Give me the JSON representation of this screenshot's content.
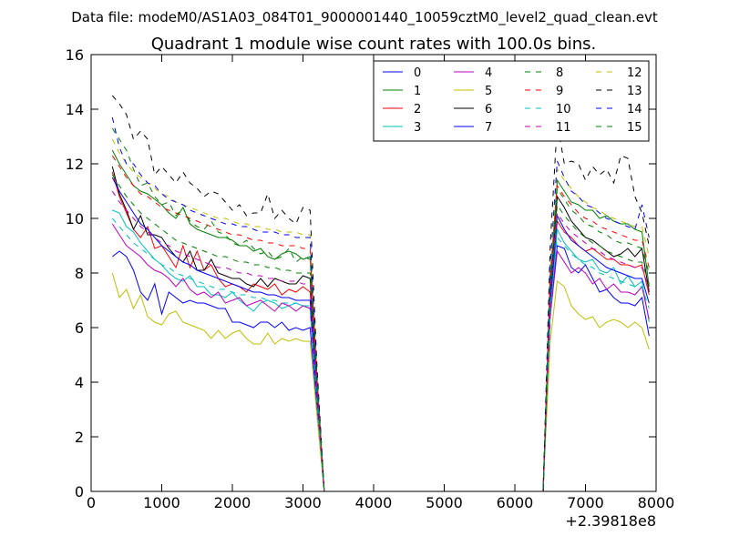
{
  "chart_data": {
    "type": "line",
    "suptitle": "Data file: modeM0/AS1A03_084T01_9000001440_10059cztM0_level2_quad_clean.evt",
    "title": "Quadrant 1 module wise count rates with 100.0s bins.",
    "xlabel": "",
    "ylabel": "",
    "x_offset_label": "+2.39818e8",
    "xlim": [
      0,
      8000
    ],
    "ylim": [
      0,
      16
    ],
    "xticks": [
      0,
      1000,
      2000,
      3000,
      4000,
      5000,
      6000,
      7000,
      8000
    ],
    "yticks": [
      0,
      2,
      4,
      6,
      8,
      10,
      12,
      14,
      16
    ],
    "grid": false,
    "legend_position": "top-right",
    "legend_columns": 4,
    "x": [
      300,
      400,
      500,
      600,
      700,
      800,
      900,
      1000,
      1100,
      1200,
      1300,
      1400,
      1500,
      1600,
      1700,
      1800,
      1900,
      2000,
      2100,
      2200,
      2300,
      2400,
      2500,
      2600,
      2700,
      2800,
      2900,
      3000,
      3100,
      3200,
      3300,
      6400,
      6500,
      6600,
      6700,
      6800,
      6900,
      7000,
      7100,
      7200,
      7300,
      7400,
      7500,
      7600,
      7700,
      7800,
      7900
    ],
    "series": [
      {
        "name": "0",
        "color": "#0000ff",
        "dash": "solid",
        "values": [
          8.6,
          8.8,
          8.6,
          8.1,
          7.3,
          7.0,
          7.6,
          6.5,
          7.3,
          7.1,
          6.9,
          7.0,
          6.9,
          6.9,
          6.8,
          6.7,
          6.7,
          6.2,
          6.2,
          6.1,
          6.0,
          6.2,
          6.2,
          6.0,
          6.2,
          5.9,
          6.0,
          5.9,
          6.0,
          3.0,
          0,
          0,
          6.5,
          9.0,
          8.9,
          8.2,
          8.0,
          8.3,
          7.8,
          7.3,
          7.4,
          7.1,
          6.9,
          6.9,
          6.8,
          7.1,
          5.7
        ]
      },
      {
        "name": "1",
        "color": "#008000",
        "dash": "solid",
        "values": [
          12.5,
          12.0,
          11.6,
          11.2,
          11.0,
          10.9,
          10.7,
          10.5,
          10.2,
          10.0,
          10.4,
          9.8,
          9.6,
          9.5,
          9.4,
          9.3,
          9.3,
          9.2,
          9.0,
          9.0,
          8.8,
          8.9,
          8.6,
          8.5,
          8.7,
          8.8,
          8.7,
          8.5,
          8.6,
          4.0,
          0,
          0,
          7.5,
          11.4,
          11.0,
          10.6,
          10.5,
          10.3,
          10.3,
          10.0,
          10.1,
          9.9,
          9.8,
          9.8,
          9.6,
          9.5,
          7.5
        ]
      },
      {
        "name": "2",
        "color": "#ff0000",
        "dash": "solid",
        "values": [
          11.7,
          10.8,
          10.2,
          9.6,
          9.3,
          9.7,
          8.9,
          9.0,
          8.6,
          8.2,
          9.0,
          8.2,
          8.8,
          8.1,
          8.3,
          7.8,
          7.5,
          7.6,
          7.5,
          7.3,
          7.6,
          7.5,
          7.4,
          7.6,
          7.2,
          7.4,
          7.3,
          7.5,
          7.3,
          3.5,
          0,
          0,
          6.8,
          9.9,
          9.5,
          9.3,
          9.0,
          8.8,
          8.9,
          8.7,
          8.5,
          8.5,
          8.3,
          8.3,
          8.2,
          8.3,
          7.2
        ]
      },
      {
        "name": "3",
        "color": "#00bfbf",
        "dash": "solid",
        "values": [
          10.3,
          10.2,
          9.7,
          9.5,
          9.1,
          8.8,
          8.5,
          8.3,
          8.0,
          7.8,
          7.7,
          7.9,
          7.5,
          7.5,
          7.2,
          7.2,
          7.1,
          7.3,
          7.0,
          6.8,
          6.6,
          6.9,
          7.0,
          6.9,
          6.7,
          6.8,
          6.9,
          6.8,
          6.7,
          3.2,
          0,
          0,
          6.6,
          9.6,
          9.1,
          8.8,
          8.5,
          8.4,
          8.5,
          8.1,
          8.0,
          8.2,
          7.6,
          7.9,
          7.5,
          7.7,
          6.2
        ]
      },
      {
        "name": "4",
        "color": "#bf00bf",
        "dash": "solid",
        "values": [
          9.8,
          9.4,
          9.0,
          8.8,
          8.6,
          8.3,
          8.1,
          8.0,
          7.8,
          7.5,
          7.8,
          7.4,
          7.2,
          7.3,
          7.1,
          7.3,
          6.9,
          7.0,
          7.1,
          6.8,
          6.9,
          7.0,
          6.8,
          6.6,
          6.9,
          6.8,
          6.6,
          6.8,
          6.7,
          3.3,
          0,
          0,
          6.4,
          8.8,
          8.4,
          8.0,
          8.2,
          8.0,
          7.6,
          7.8,
          7.4,
          7.6,
          7.3,
          7.3,
          7.2,
          7.5,
          6.3
        ]
      },
      {
        "name": "5",
        "color": "#bfbf00",
        "dash": "solid",
        "values": [
          8.0,
          7.1,
          7.4,
          6.7,
          7.2,
          6.4,
          6.2,
          6.1,
          6.5,
          6.6,
          6.2,
          6.1,
          6.0,
          5.9,
          5.6,
          5.9,
          5.6,
          5.8,
          5.9,
          5.6,
          5.4,
          5.4,
          5.8,
          5.4,
          5.6,
          5.5,
          5.6,
          5.5,
          5.5,
          2.7,
          0,
          0,
          5.5,
          7.7,
          7.5,
          6.8,
          6.5,
          6.3,
          6.4,
          6.0,
          6.2,
          6.3,
          6.2,
          6.0,
          6.2,
          6.0,
          5.2
        ]
      },
      {
        "name": "6",
        "color": "#000000",
        "dash": "solid",
        "values": [
          11.9,
          10.9,
          10.3,
          9.6,
          10.1,
          9.4,
          9.4,
          9.3,
          8.9,
          8.6,
          8.4,
          8.8,
          8.1,
          8.1,
          8.5,
          8.0,
          7.9,
          7.8,
          7.8,
          7.6,
          7.5,
          7.8,
          7.5,
          7.8,
          7.7,
          7.6,
          7.6,
          7.9,
          7.8,
          3.5,
          0,
          0,
          7.2,
          10.8,
          10.4,
          9.9,
          9.6,
          9.3,
          9.2,
          9.0,
          8.8,
          8.6,
          8.7,
          8.9,
          8.6,
          8.9,
          7.3
        ]
      },
      {
        "name": "7",
        "color": "#0000ff",
        "dash": "solid",
        "values": [
          11.5,
          11.0,
          10.6,
          10.2,
          9.8,
          9.6,
          9.3,
          9.0,
          8.8,
          8.6,
          8.4,
          8.3,
          8.1,
          8.0,
          7.9,
          7.8,
          7.7,
          7.6,
          7.5,
          7.4,
          7.3,
          7.3,
          7.2,
          7.2,
          7.1,
          7.1,
          7.0,
          7.0,
          7.0,
          3.4,
          0,
          0,
          6.9,
          10.1,
          9.6,
          9.2,
          9.0,
          8.8,
          8.6,
          8.4,
          8.2,
          8.1,
          8.0,
          7.9,
          7.8,
          7.8,
          6.9
        ]
      },
      {
        "name": "8",
        "color": "#008000",
        "dash": "dashed",
        "values": [
          11.6,
          11.2,
          10.8,
          10.5,
          10.2,
          10.0,
          9.8,
          9.6,
          9.4,
          9.2,
          9.1,
          9.0,
          8.9,
          8.8,
          8.7,
          8.6,
          8.6,
          8.5,
          8.4,
          8.4,
          8.3,
          8.3,
          8.2,
          8.2,
          8.1,
          8.1,
          8.0,
          8.0,
          8.0,
          3.8,
          0,
          0,
          7.4,
          10.5,
          10.1,
          9.8,
          9.5,
          9.3,
          9.1,
          9.0,
          8.8,
          8.7,
          8.6,
          8.5,
          8.4,
          8.4,
          7.6
        ]
      },
      {
        "name": "9",
        "color": "#ff0000",
        "dash": "dashed",
        "values": [
          12.3,
          11.9,
          11.5,
          11.2,
          10.9,
          10.8,
          10.6,
          10.4,
          10.3,
          10.2,
          10.1,
          10.0,
          9.9,
          9.8,
          9.7,
          9.6,
          9.5,
          9.4,
          9.4,
          9.3,
          9.2,
          9.2,
          9.1,
          9.1,
          9.0,
          9.0,
          9.0,
          8.9,
          8.9,
          4.1,
          0,
          0,
          7.9,
          11.2,
          10.8,
          10.5,
          10.2,
          10.0,
          9.9,
          9.7,
          9.6,
          9.5,
          9.4,
          9.3,
          9.2,
          9.2,
          8.2
        ]
      },
      {
        "name": "10",
        "color": "#00bfbf",
        "dash": "dashed",
        "values": [
          10.0,
          9.7,
          9.4,
          9.1,
          8.9,
          8.7,
          8.5,
          8.3,
          8.2,
          8.0,
          7.9,
          7.8,
          7.7,
          7.6,
          7.5,
          7.4,
          7.4,
          7.3,
          7.2,
          7.2,
          7.1,
          7.1,
          7.0,
          7.0,
          6.9,
          6.9,
          6.9,
          6.8,
          6.8,
          3.3,
          0,
          0,
          6.7,
          9.3,
          9.0,
          8.7,
          8.5,
          8.3,
          8.2,
          8.0,
          7.9,
          7.8,
          7.7,
          7.6,
          7.5,
          7.5,
          6.7
        ]
      },
      {
        "name": "11",
        "color": "#bf00bf",
        "dash": "dashed",
        "values": [
          11.0,
          10.6,
          10.3,
          10.0,
          9.7,
          9.5,
          9.3,
          9.1,
          9.0,
          8.8,
          8.7,
          8.6,
          8.5,
          8.4,
          8.3,
          8.2,
          8.2,
          8.1,
          8.0,
          8.0,
          7.9,
          7.9,
          7.8,
          7.8,
          7.7,
          7.7,
          7.7,
          7.6,
          7.6,
          3.6,
          0,
          0,
          7.2,
          10.2,
          9.8,
          9.5,
          9.3,
          9.1,
          8.9,
          8.8,
          8.6,
          8.5,
          8.4,
          8.3,
          8.2,
          8.2,
          7.4
        ]
      },
      {
        "name": "12",
        "color": "#bfbf00",
        "dash": "dashed",
        "values": [
          12.9,
          12.4,
          12.0,
          11.7,
          11.5,
          11.3,
          11.1,
          10.9,
          10.8,
          10.6,
          10.5,
          10.4,
          10.3,
          10.2,
          10.1,
          10.0,
          10.0,
          9.9,
          9.8,
          9.8,
          9.7,
          9.7,
          9.6,
          9.6,
          9.5,
          9.5,
          9.5,
          9.4,
          9.4,
          4.3,
          0,
          0,
          8.2,
          11.8,
          11.4,
          11.1,
          10.8,
          10.6,
          10.4,
          10.3,
          10.1,
          10.0,
          9.9,
          9.8,
          9.7,
          9.7,
          8.6
        ]
      },
      {
        "name": "13",
        "color": "#000000",
        "dash": "dashed",
        "values": [
          14.5,
          14.2,
          13.8,
          12.9,
          13.2,
          12.9,
          11.6,
          11.9,
          11.6,
          11.3,
          11.7,
          11.3,
          11.1,
          10.8,
          11.0,
          10.9,
          10.6,
          10.3,
          10.5,
          10.1,
          10.2,
          10.2,
          10.9,
          10.0,
          10.3,
          10.0,
          9.8,
          10.4,
          10.3,
          4.5,
          0,
          0,
          9.0,
          13.5,
          12.0,
          12.1,
          12.0,
          11.4,
          11.9,
          11.6,
          11.8,
          11.3,
          12.3,
          12.2,
          10.8,
          10.2,
          9.0
        ]
      },
      {
        "name": "14",
        "color": "#0000ff",
        "dash": "dashed",
        "values": [
          13.7,
          12.6,
          12.0,
          12.0,
          11.6,
          11.3,
          11.2,
          10.9,
          10.7,
          10.6,
          10.5,
          10.3,
          10.2,
          10.1,
          10.0,
          9.9,
          9.8,
          9.8,
          9.7,
          9.7,
          9.6,
          9.5,
          9.5,
          9.5,
          9.4,
          9.4,
          9.3,
          9.3,
          9.3,
          4.2,
          0,
          0,
          8.3,
          12.1,
          11.5,
          11.0,
          10.8,
          10.5,
          10.4,
          10.2,
          10.0,
          9.9,
          9.8,
          9.7,
          9.6,
          10.5,
          9.3
        ]
      },
      {
        "name": "15",
        "color": "#008000",
        "dash": "dashed",
        "values": [
          13.3,
          12.9,
          12.5,
          11.8,
          11.2,
          11.3,
          10.8,
          10.5,
          10.6,
          10.1,
          10.4,
          9.9,
          9.7,
          9.6,
          9.9,
          9.5,
          9.4,
          9.1,
          9.0,
          9.2,
          8.9,
          8.7,
          8.8,
          8.5,
          8.6,
          8.9,
          8.4,
          8.6,
          8.5,
          4.0,
          0,
          0,
          7.6,
          11.1,
          10.7,
          10.3,
          10.1,
          9.8,
          9.7,
          9.5,
          9.4,
          9.2,
          9.1,
          9.1,
          9.0,
          8.9,
          8.0
        ]
      }
    ]
  }
}
